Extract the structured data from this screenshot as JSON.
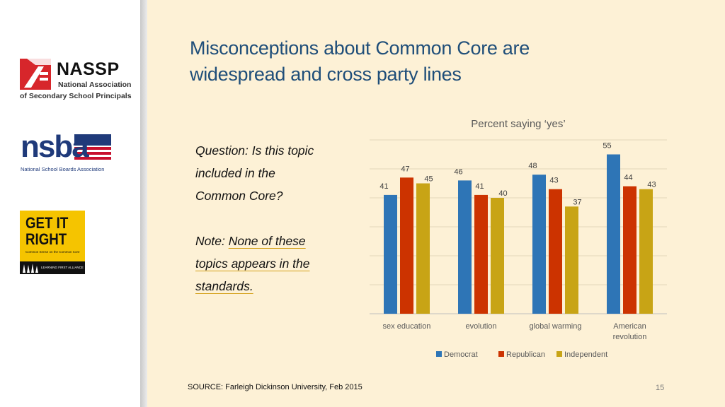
{
  "slide": {
    "title_line1": "Misconceptions about Common Core are",
    "title_line2": "widespread and cross party lines",
    "question_lines": [
      "Question: Is this topic",
      "included in the",
      "Common Core?"
    ],
    "note_prefix": "Note: ",
    "note_u1": "None of these",
    "note_u2": "topics appears in the",
    "note_u3": "standards.",
    "source": "SOURCE: Farleigh Dickinson University, Feb 2015",
    "page_number": "15"
  },
  "logos": {
    "nassp_name": "NASSP",
    "nassp_sub1": "National Association",
    "nassp_sub2": "of Secondary School Principals",
    "nsba_name": "nsba",
    "nsba_sub": "National School Boards Association",
    "gir_line1": "GET IT",
    "gir_line2": "RIGHT",
    "gir_sub": "Common Sense on the Common Core",
    "gir_footer": "LEARNING FIRST ALLIANCE"
  },
  "chart_data": {
    "type": "bar",
    "title": "Percent saying ‘yes’",
    "categories": [
      [
        "sex education"
      ],
      [
        "evolution"
      ],
      [
        "global warming"
      ],
      [
        "American",
        "revolution"
      ]
    ],
    "series": [
      {
        "name": "Democrat",
        "color": "#2e75b6",
        "values": [
          41,
          46,
          48,
          55
        ]
      },
      {
        "name": "Republican",
        "color": "#cc3300",
        "values": [
          47,
          41,
          43,
          44
        ]
      },
      {
        "name": "Independent",
        "color": "#c8a415",
        "values": [
          45,
          40,
          37,
          43
        ]
      }
    ],
    "ylim": [
      0,
      60
    ],
    "grid": true,
    "legend": "bottom"
  }
}
